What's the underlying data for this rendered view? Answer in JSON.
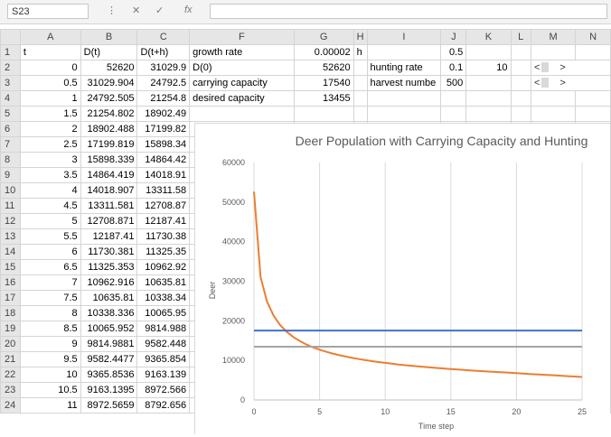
{
  "formula_bar": {
    "name_box": "S23",
    "cancel_icon": "✕",
    "confirm_icon": "✓",
    "fx_label": "fx",
    "formula": ""
  },
  "columns": [
    "A",
    "B",
    "C",
    "F",
    "G",
    "H",
    "I",
    "J",
    "K",
    "L",
    "M",
    "N"
  ],
  "rows": [
    {
      "r": "1",
      "A": "t",
      "B": "D(t)",
      "C": "D(t+h)",
      "F": "growth rate",
      "G": "0.00002",
      "H": "h",
      "I": "",
      "J": "0.5",
      "K": ""
    },
    {
      "r": "2",
      "A": "0",
      "B": "52620",
      "C": "31029.9",
      "F": "D(0)",
      "G": "52620",
      "H": "",
      "I": "hunting rate",
      "J": "0.1",
      "K": "10"
    },
    {
      "r": "3",
      "A": "0.5",
      "B": "31029.904",
      "C": "24792.5",
      "F": "carrying capacity",
      "G": "17540",
      "H": "",
      "I": "harvest numbe",
      "J": "500",
      "K": ""
    },
    {
      "r": "4",
      "A": "1",
      "B": "24792.505",
      "C": "21254.8",
      "F": "desired capacity",
      "G": "13455",
      "H": "",
      "I": "",
      "J": "",
      "K": ""
    },
    {
      "r": "5",
      "A": "1.5",
      "B": "21254.802",
      "C": "18902.49"
    },
    {
      "r": "6",
      "A": "2",
      "B": "18902.488",
      "C": "17199.82"
    },
    {
      "r": "7",
      "A": "2.5",
      "B": "17199.819",
      "C": "15898.34"
    },
    {
      "r": "8",
      "A": "3",
      "B": "15898.339",
      "C": "14864.42"
    },
    {
      "r": "9",
      "A": "3.5",
      "B": "14864.419",
      "C": "14018.91"
    },
    {
      "r": "10",
      "A": "4",
      "B": "14018.907",
      "C": "13311.58"
    },
    {
      "r": "11",
      "A": "4.5",
      "B": "13311.581",
      "C": "12708.87"
    },
    {
      "r": "12",
      "A": "5",
      "B": "12708.871",
      "C": "12187.41"
    },
    {
      "r": "13",
      "A": "5.5",
      "B": "12187.41",
      "C": "11730.38"
    },
    {
      "r": "14",
      "A": "6",
      "B": "11730.381",
      "C": "11325.35"
    },
    {
      "r": "15",
      "A": "6.5",
      "B": "11325.353",
      "C": "10962.92"
    },
    {
      "r": "16",
      "A": "7",
      "B": "10962.916",
      "C": "10635.81"
    },
    {
      "r": "17",
      "A": "7.5",
      "B": "10635.81",
      "C": "10338.34"
    },
    {
      "r": "18",
      "A": "8",
      "B": "10338.336",
      "C": "10065.95"
    },
    {
      "r": "19",
      "A": "8.5",
      "B": "10065.952",
      "C": "9814.988"
    },
    {
      "r": "20",
      "A": "9",
      "B": "9814.9881",
      "C": "9582.448"
    },
    {
      "r": "21",
      "A": "9.5",
      "B": "9582.4477",
      "C": "9365.854"
    },
    {
      "r": "22",
      "A": "10",
      "B": "9365.8536",
      "C": "9163.139"
    },
    {
      "r": "23",
      "A": "10.5",
      "B": "9163.1395",
      "C": "8972.566"
    },
    {
      "r": "24",
      "A": "11",
      "B": "8972.5659",
      "C": "8792.656"
    }
  ],
  "scroll_controls": {
    "left": "<",
    "right": ">"
  },
  "chart_data": {
    "type": "line",
    "title": "Deer Population with Carrying Capacity and Hunting",
    "xlabel": "Time step",
    "ylabel": "Deer",
    "xlim": [
      0,
      25
    ],
    "ylim": [
      0,
      60000
    ],
    "x_ticks": [
      "0",
      "5",
      "10",
      "15",
      "20",
      "25"
    ],
    "y_ticks": [
      "0",
      "10000",
      "20000",
      "30000",
      "40000",
      "50000",
      "60000"
    ],
    "grid": "vertical",
    "series": [
      {
        "color": "#ed7d31",
        "x": [
          0,
          0.5,
          1,
          1.5,
          2,
          2.5,
          3,
          3.5,
          4,
          4.5,
          5,
          5.5,
          6,
          6.5,
          7,
          7.5,
          8,
          8.5,
          9,
          9.5,
          10,
          10.5,
          11,
          12,
          13,
          14,
          15,
          16,
          17,
          18,
          19,
          20,
          21,
          22,
          23,
          24,
          25
        ],
        "values": [
          52620,
          31029.9,
          24792.5,
          21254.8,
          18902.5,
          17199.8,
          15898.3,
          14864.4,
          14018.9,
          13311.6,
          12708.9,
          12187.4,
          11730.4,
          11325.4,
          10962.9,
          10635.8,
          10338.3,
          10066,
          9815,
          9582.4,
          9365.9,
          9163.1,
          8972.6,
          8650,
          8350,
          8080,
          7830,
          7600,
          7380,
          7170,
          6970,
          6770,
          6580,
          6390,
          6200,
          6000,
          5820
        ]
      },
      {
        "color": "#4472c4",
        "x": [
          0,
          25
        ],
        "values": [
          17540,
          17540
        ]
      },
      {
        "color": "#a5a5a5",
        "x": [
          0,
          25
        ],
        "values": [
          13455,
          13455
        ]
      }
    ]
  }
}
